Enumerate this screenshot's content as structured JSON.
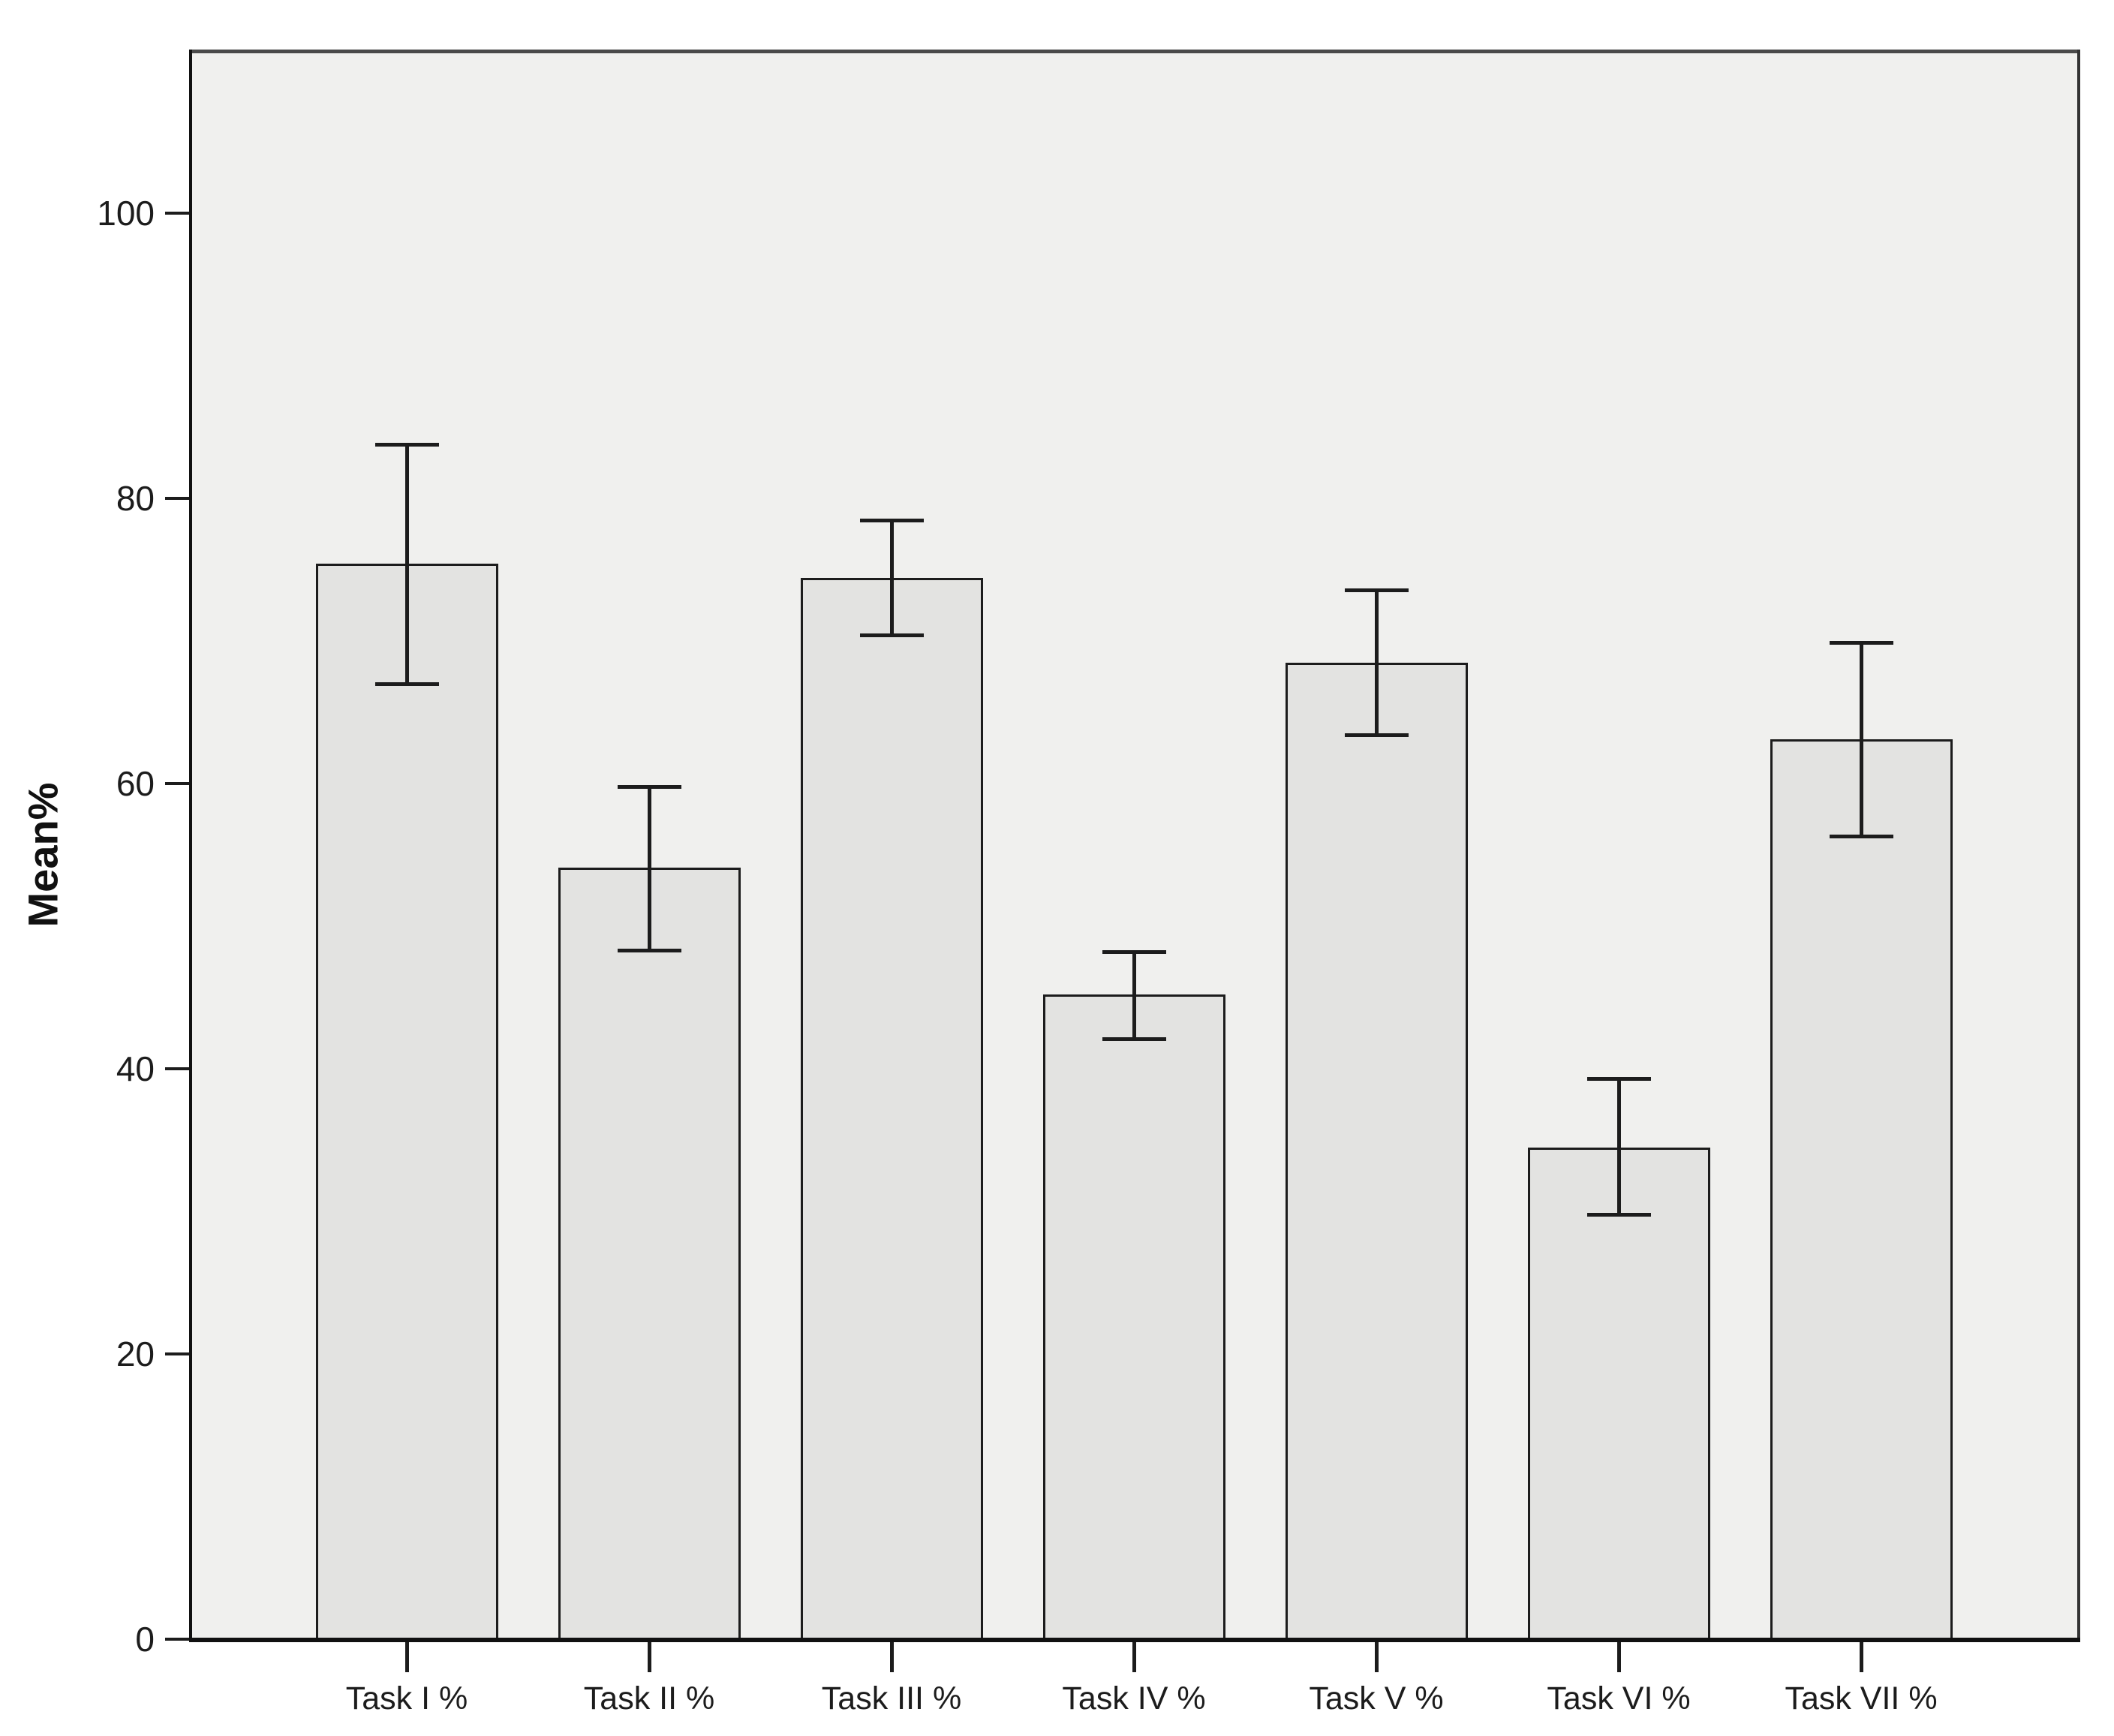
{
  "chart_data": {
    "type": "bar",
    "title": "",
    "xlabel": "",
    "ylabel": "Mean%",
    "categories": [
      "Task I %",
      "Task II %",
      "Task III %",
      "Task IV %",
      "Task V %",
      "Task VI %",
      "Task VII %"
    ],
    "series": [
      {
        "name": "Mean%",
        "values": [
          75.4,
          54.1,
          74.4,
          45.2,
          68.5,
          34.5,
          63.1
        ]
      }
    ],
    "error_bars": {
      "upper": [
        83.8,
        59.8,
        78.5,
        48.2,
        73.6,
        39.3,
        69.9
      ],
      "lower": [
        67.0,
        48.3,
        70.4,
        42.1,
        63.4,
        29.8,
        56.3
      ]
    },
    "y_ticks": [
      0,
      20,
      40,
      60,
      80,
      100
    ],
    "ylim": [
      0,
      111
    ],
    "grid": false,
    "legend": false,
    "colors": {
      "plot_background": "#f0f0ee",
      "bar_fill": "#e3e3e1",
      "bar_border": "#1c1c1c",
      "error_bar": "#1c1c1c",
      "frame_top": "#4a4a4a",
      "frame_right": "#333333",
      "axis": "#111111",
      "tick": "#1c1c1c",
      "text": "#1c1c1c",
      "page_background": "#ffffff"
    }
  }
}
